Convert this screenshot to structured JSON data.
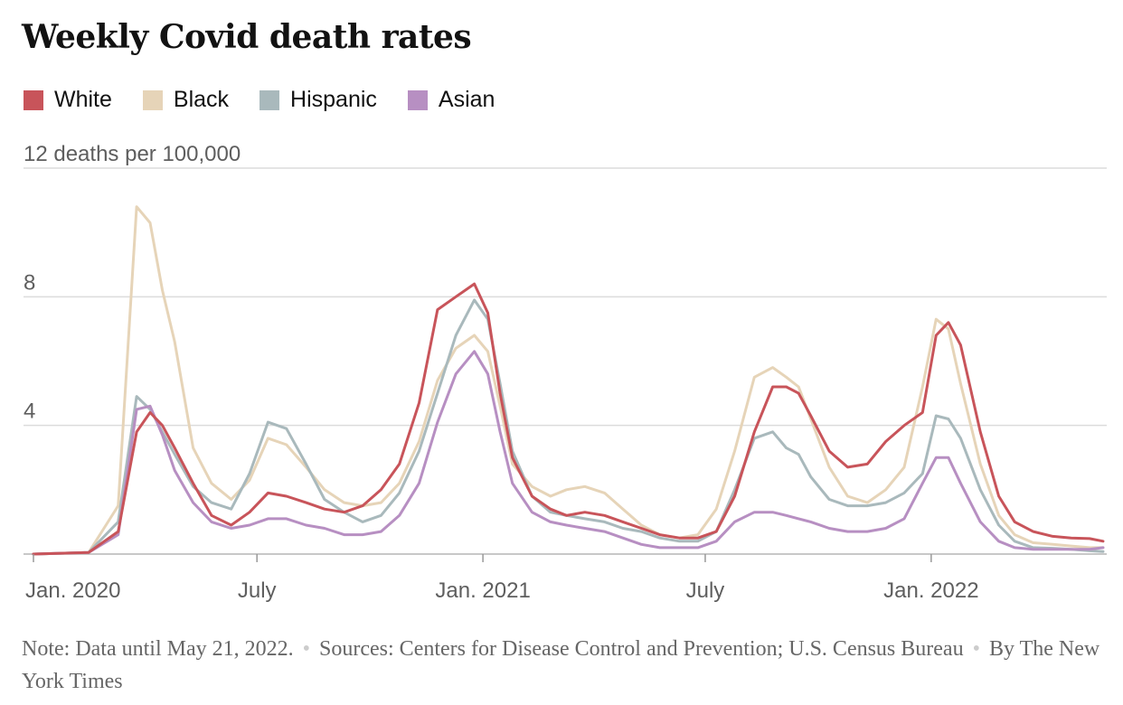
{
  "chart_data": {
    "type": "line",
    "title": "Weekly Covid death rates",
    "y_unit_label": "12 deaths per 100,000",
    "ylim": [
      0,
      12
    ],
    "y_ticks": [
      0,
      4,
      8,
      12
    ],
    "y_tick_labels": [
      "",
      "4",
      "8",
      "12 deaths per 100,000"
    ],
    "x_range": [
      "2020-01-01",
      "2022-05-21"
    ],
    "x_ticks": [
      {
        "date": "2020-01-01",
        "label": "Jan. 2020"
      },
      {
        "date": "2020-07-01",
        "label": "July"
      },
      {
        "date": "2021-01-01",
        "label": "Jan. 2021"
      },
      {
        "date": "2021-07-01",
        "label": "July"
      },
      {
        "date": "2022-01-01",
        "label": "Jan. 2022"
      }
    ],
    "grid": true,
    "legend_position": "top-left",
    "x": [
      "2020-01-01",
      "2020-02-15",
      "2020-03-10",
      "2020-03-25",
      "2020-04-05",
      "2020-04-15",
      "2020-04-25",
      "2020-05-10",
      "2020-05-25",
      "2020-06-10",
      "2020-06-25",
      "2020-07-10",
      "2020-07-25",
      "2020-08-10",
      "2020-08-25",
      "2020-09-10",
      "2020-09-25",
      "2020-10-10",
      "2020-10-25",
      "2020-11-10",
      "2020-11-25",
      "2020-12-10",
      "2020-12-25",
      "2021-01-05",
      "2021-01-15",
      "2021-01-25",
      "2021-02-10",
      "2021-02-25",
      "2021-03-10",
      "2021-03-25",
      "2021-04-10",
      "2021-04-25",
      "2021-05-10",
      "2021-05-25",
      "2021-06-10",
      "2021-06-25",
      "2021-07-10",
      "2021-07-25",
      "2021-08-10",
      "2021-08-25",
      "2021-09-05",
      "2021-09-15",
      "2021-09-25",
      "2021-10-10",
      "2021-10-25",
      "2021-11-10",
      "2021-11-25",
      "2021-12-10",
      "2021-12-25",
      "2022-01-05",
      "2022-01-15",
      "2022-01-25",
      "2022-02-10",
      "2022-02-25",
      "2022-03-10",
      "2022-03-25",
      "2022-04-10",
      "2022-04-25",
      "2022-05-10",
      "2022-05-21"
    ],
    "series": [
      {
        "name": "White",
        "color": "#c8545a",
        "values": [
          0.0,
          0.05,
          0.7,
          3.8,
          4.4,
          4.0,
          3.3,
          2.2,
          1.2,
          0.9,
          1.3,
          1.9,
          1.8,
          1.6,
          1.4,
          1.3,
          1.5,
          2.0,
          2.8,
          4.7,
          7.6,
          8.0,
          8.4,
          7.5,
          5.0,
          3.0,
          1.8,
          1.4,
          1.2,
          1.3,
          1.2,
          1.0,
          0.8,
          0.6,
          0.5,
          0.5,
          0.7,
          1.8,
          3.8,
          5.2,
          5.2,
          5.0,
          4.3,
          3.2,
          2.7,
          2.8,
          3.5,
          4.0,
          4.4,
          6.8,
          7.2,
          6.5,
          3.8,
          1.8,
          1.0,
          0.7,
          0.55,
          0.5,
          0.48,
          0.4
        ]
      },
      {
        "name": "Black",
        "color": "#e6d4b8",
        "values": [
          0.0,
          0.05,
          1.5,
          10.8,
          10.3,
          8.2,
          6.6,
          3.3,
          2.2,
          1.7,
          2.3,
          3.6,
          3.4,
          2.7,
          2.0,
          1.6,
          1.5,
          1.6,
          2.2,
          3.5,
          5.4,
          6.4,
          6.8,
          6.3,
          4.6,
          2.8,
          2.1,
          1.8,
          2.0,
          2.1,
          1.9,
          1.4,
          0.9,
          0.6,
          0.5,
          0.6,
          1.4,
          3.2,
          5.5,
          5.8,
          5.5,
          5.2,
          4.2,
          2.7,
          1.8,
          1.6,
          2.0,
          2.7,
          5.2,
          7.3,
          7.0,
          5.3,
          2.8,
          1.2,
          0.6,
          0.35,
          0.3,
          0.25,
          0.2,
          0.2
        ]
      },
      {
        "name": "Hispanic",
        "color": "#a9b9bc",
        "values": [
          0.0,
          0.05,
          1.0,
          4.9,
          4.5,
          3.8,
          3.1,
          2.1,
          1.6,
          1.4,
          2.5,
          4.1,
          3.9,
          2.8,
          1.7,
          1.3,
          1.0,
          1.2,
          1.9,
          3.2,
          5.0,
          6.8,
          7.9,
          7.3,
          5.3,
          3.2,
          1.8,
          1.3,
          1.2,
          1.1,
          1.0,
          0.8,
          0.7,
          0.5,
          0.4,
          0.4,
          0.7,
          2.0,
          3.6,
          3.8,
          3.3,
          3.1,
          2.4,
          1.7,
          1.5,
          1.5,
          1.6,
          1.9,
          2.5,
          4.3,
          4.2,
          3.6,
          2.0,
          0.9,
          0.4,
          0.2,
          0.18,
          0.15,
          0.1,
          0.08
        ]
      },
      {
        "name": "Asian",
        "color": "#b78fc2",
        "values": [
          0.0,
          0.05,
          0.6,
          4.5,
          4.6,
          3.7,
          2.6,
          1.6,
          1.0,
          0.8,
          0.9,
          1.1,
          1.1,
          0.9,
          0.8,
          0.6,
          0.6,
          0.7,
          1.2,
          2.2,
          4.1,
          5.6,
          6.3,
          5.6,
          3.8,
          2.2,
          1.3,
          1.0,
          0.9,
          0.8,
          0.7,
          0.5,
          0.3,
          0.2,
          0.2,
          0.2,
          0.4,
          1.0,
          1.3,
          1.3,
          1.2,
          1.1,
          1.0,
          0.8,
          0.7,
          0.7,
          0.8,
          1.1,
          2.2,
          3.0,
          3.0,
          2.2,
          1.0,
          0.4,
          0.2,
          0.15,
          0.15,
          0.15,
          0.15,
          0.2
        ]
      }
    ]
  },
  "note": {
    "text1": "Note: Data until May 21, 2022.",
    "text2": "Sources: Centers for Disease Control and Prevention; U.S. Census",
    "text3": "Bureau",
    "text4": "By The New York Times",
    "separator": "•"
  }
}
